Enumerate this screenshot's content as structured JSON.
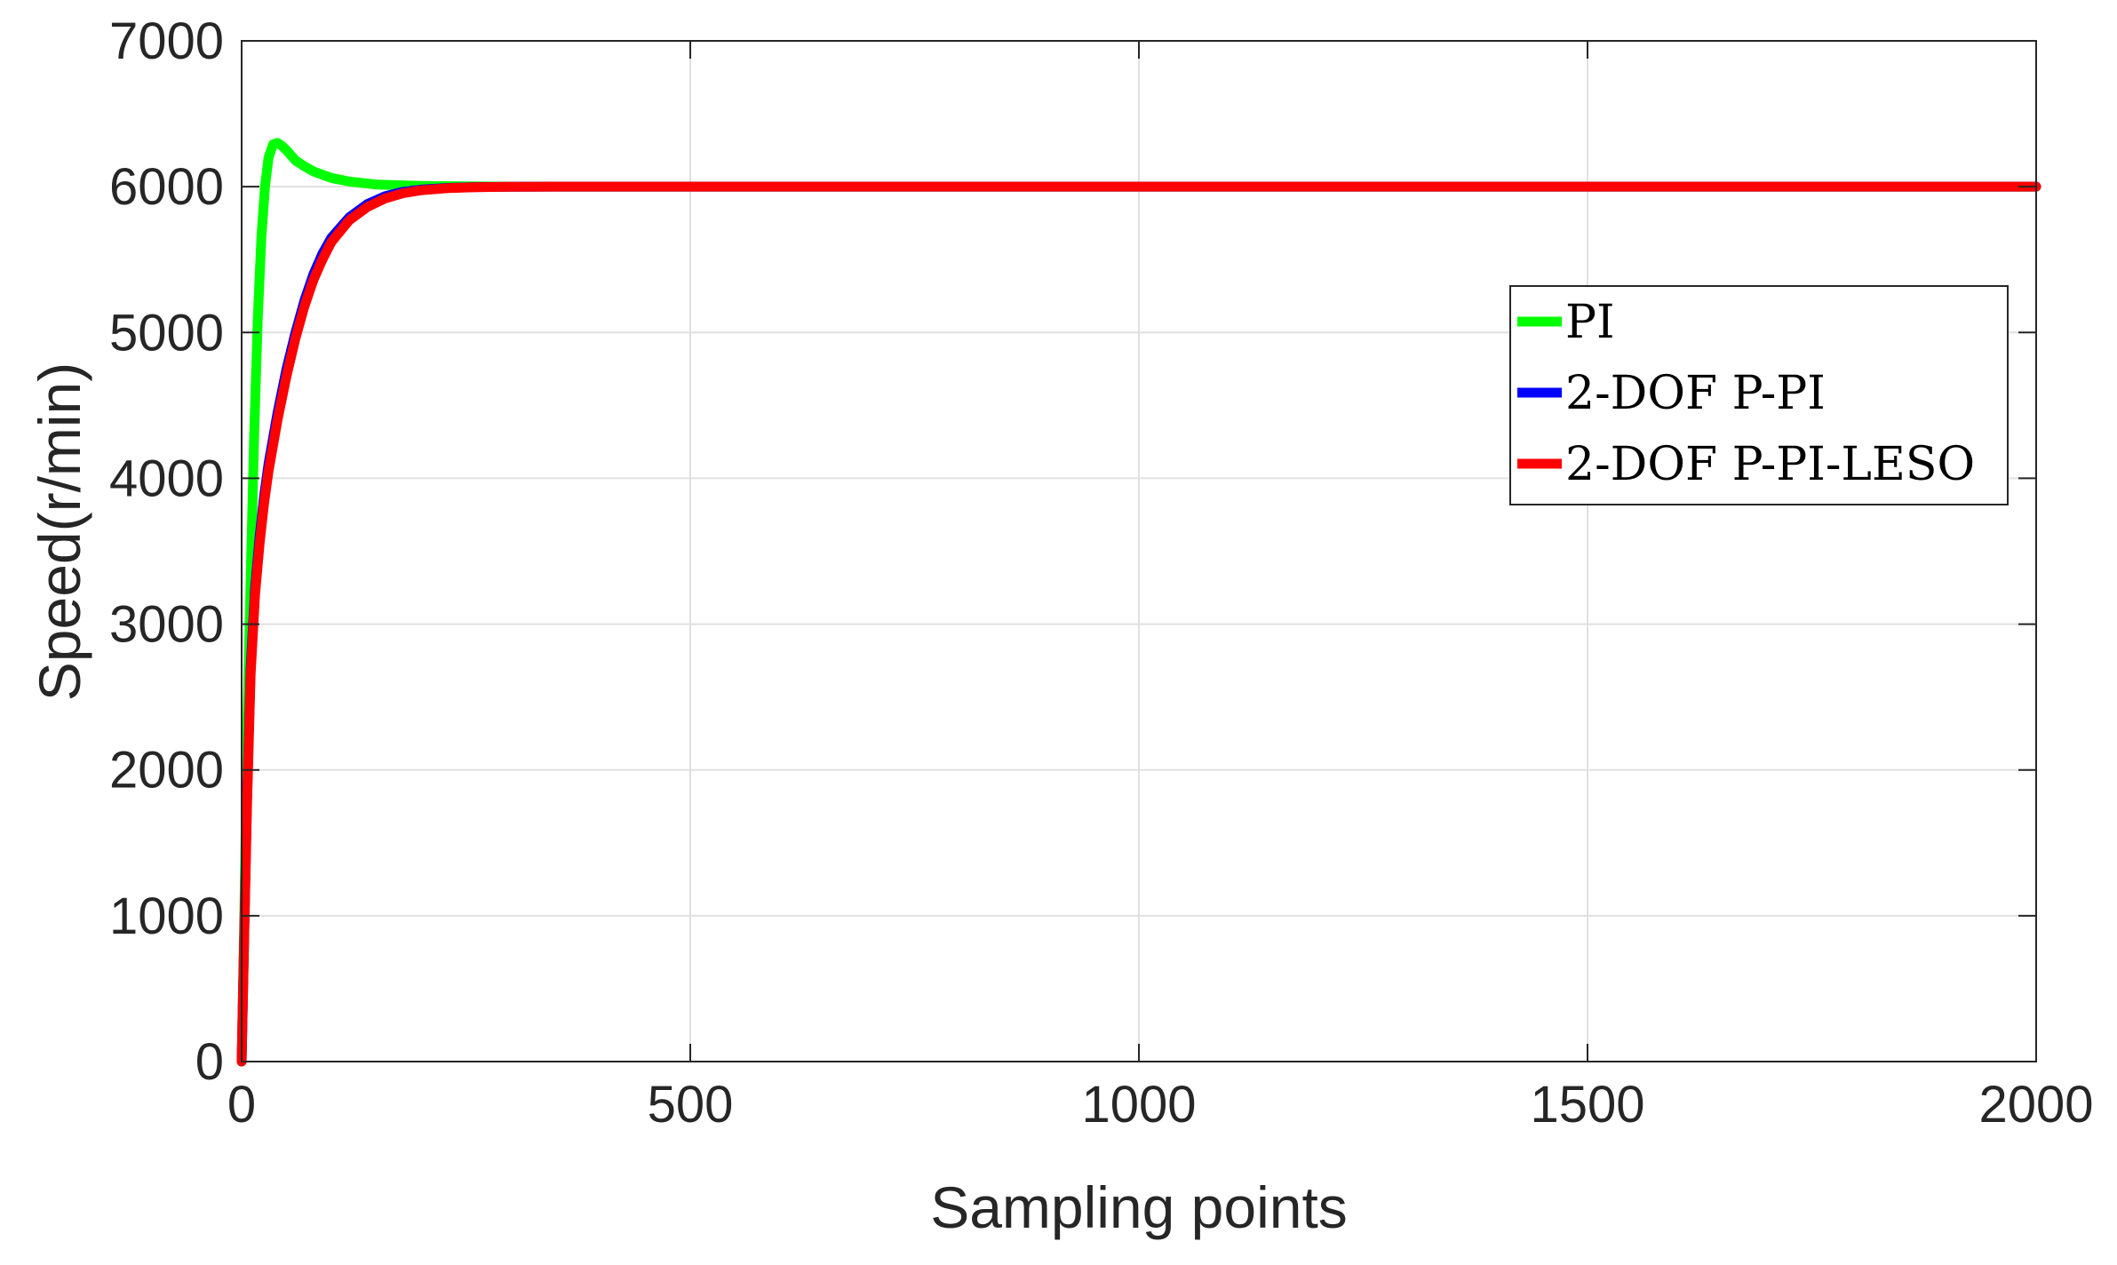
{
  "chart_data": {
    "type": "line",
    "title": "",
    "xlabel": "Sampling points",
    "ylabel": "Speed(r/min)",
    "xlim": [
      0,
      2000
    ],
    "ylim": [
      0,
      7000
    ],
    "xticks": [
      0,
      500,
      1000,
      1500,
      2000
    ],
    "yticks": [
      0,
      1000,
      2000,
      3000,
      4000,
      5000,
      6000,
      7000
    ],
    "xtick_labels": [
      "0",
      "500",
      "1000",
      "1500",
      "2000"
    ],
    "ytick_labels": [
      "0",
      "1000",
      "2000",
      "3000",
      "4000",
      "5000",
      "6000",
      "7000"
    ],
    "grid": true,
    "legend_position": "right",
    "series": [
      {
        "name": "PI",
        "color": "#00ff00",
        "x": [
          0,
          3,
          6,
          10,
          14,
          18,
          22,
          26,
          30,
          35,
          40,
          45,
          50,
          60,
          70,
          80,
          100,
          120,
          150,
          200,
          250,
          300,
          400,
          600,
          1000,
          1500,
          2000
        ],
        "y": [
          0,
          1000,
          2200,
          3300,
          4300,
          5100,
          5650,
          6000,
          6200,
          6290,
          6300,
          6280,
          6250,
          6180,
          6140,
          6105,
          6060,
          6035,
          6015,
          6005,
          6002,
          6000,
          6000,
          6000,
          6000,
          6000,
          6000
        ]
      },
      {
        "name": "2-DOF P-PI",
        "color": "#0000ff",
        "x": [
          0,
          3,
          6,
          10,
          15,
          20,
          25,
          30,
          40,
          50,
          60,
          70,
          80,
          90,
          100,
          120,
          140,
          160,
          180,
          200,
          230,
          260,
          300,
          350,
          400,
          600,
          1000,
          1500,
          2000
        ],
        "y": [
          0,
          900,
          1800,
          2700,
          3250,
          3600,
          3880,
          4100,
          4450,
          4750,
          5000,
          5220,
          5400,
          5540,
          5650,
          5790,
          5880,
          5935,
          5965,
          5980,
          5992,
          5997,
          5999,
          6000,
          6000,
          6000,
          6000,
          6000,
          6000
        ]
      },
      {
        "name": "2-DOF P-PI-LESO",
        "color": "#ff0000",
        "x": [
          0,
          3,
          6,
          10,
          15,
          20,
          25,
          30,
          40,
          50,
          60,
          70,
          80,
          90,
          100,
          120,
          140,
          160,
          180,
          200,
          230,
          260,
          300,
          350,
          400,
          600,
          1000,
          1500,
          2000
        ],
        "y": [
          0,
          880,
          1760,
          2650,
          3200,
          3550,
          3830,
          4050,
          4400,
          4700,
          4960,
          5180,
          5360,
          5500,
          5620,
          5770,
          5860,
          5920,
          5955,
          5975,
          5990,
          5996,
          5999,
          6000,
          6000,
          6000,
          6000,
          6000,
          6000
        ]
      }
    ]
  }
}
